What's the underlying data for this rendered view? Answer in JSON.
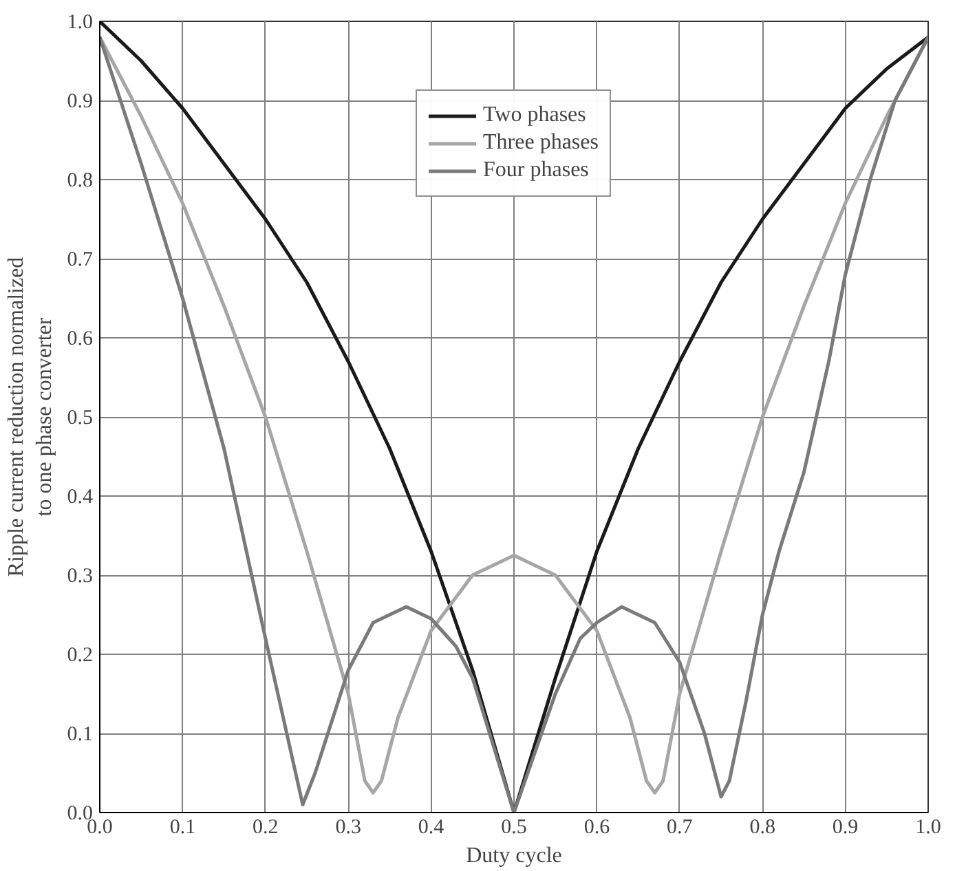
{
  "chart_data": {
    "type": "line",
    "xlabel": "Duty cycle",
    "ylabel": "Ripple current reduction normalized\nto one phase converter",
    "xlim": [
      0.0,
      1.0
    ],
    "ylim": [
      0.0,
      1.0
    ],
    "xticks": [
      {
        "value": 0,
        "label": "0.0"
      },
      0.1,
      0.2,
      0.3,
      0.4,
      0.5,
      0.6,
      0.7,
      0.8,
      0.9,
      {
        "value": 1,
        "label": "1.0"
      }
    ],
    "yticks": [
      {
        "value": 0,
        "label": "0.0"
      },
      0.1,
      0.2,
      0.3,
      0.4,
      0.5,
      0.6,
      0.7,
      0.8,
      0.9,
      {
        "value": 1,
        "label": "1.0"
      }
    ],
    "grid": true,
    "legend": "top",
    "marker": "none",
    "line_style": "solid",
    "series": [
      {
        "name": "Two phases",
        "color": "#1a1a1a",
        "x": [
          0,
          0.05,
          0.1,
          0.15,
          0.2,
          0.25,
          0.3,
          0.35,
          0.4,
          0.45,
          0.5,
          0.55,
          0.6,
          0.65,
          0.7,
          0.75,
          0.8,
          0.85,
          0.9,
          0.95,
          1.0
        ],
        "values": [
          1.0,
          0.95,
          0.89,
          0.82,
          0.75,
          0.67,
          0.57,
          0.46,
          0.33,
          0.18,
          0.0,
          0.17,
          0.33,
          0.46,
          0.57,
          0.67,
          0.75,
          0.82,
          0.89,
          0.94,
          0.98
        ]
      },
      {
        "name": "Three phases",
        "color": "#a6a6a6",
        "x": [
          0,
          0.05,
          0.1,
          0.15,
          0.2,
          0.25,
          0.3,
          0.32,
          0.33,
          0.34,
          0.36,
          0.4,
          0.45,
          0.5,
          0.55,
          0.6,
          0.64,
          0.66,
          0.67,
          0.68,
          0.7,
          0.75,
          0.8,
          0.85,
          0.9,
          0.95,
          1.0
        ],
        "values": [
          0.98,
          0.88,
          0.77,
          0.64,
          0.5,
          0.33,
          0.15,
          0.04,
          0.025,
          0.04,
          0.12,
          0.23,
          0.3,
          0.325,
          0.3,
          0.23,
          0.12,
          0.04,
          0.025,
          0.04,
          0.15,
          0.33,
          0.5,
          0.64,
          0.77,
          0.88,
          0.98
        ]
      },
      {
        "name": "Four phases",
        "color": "#7a7a7a",
        "x": [
          0,
          0.05,
          0.1,
          0.15,
          0.2,
          0.23,
          0.245,
          0.26,
          0.3,
          0.33,
          0.37,
          0.4,
          0.43,
          0.45,
          0.5,
          0.55,
          0.58,
          0.6,
          0.63,
          0.67,
          0.7,
          0.73,
          0.75,
          0.76,
          0.78,
          0.8,
          0.82,
          0.85,
          0.88,
          0.9,
          0.93,
          0.96,
          1.0
        ],
        "values": [
          0.98,
          0.82,
          0.65,
          0.46,
          0.22,
          0.08,
          0.01,
          0.05,
          0.18,
          0.24,
          0.26,
          0.245,
          0.21,
          0.17,
          0.0,
          0.15,
          0.22,
          0.24,
          0.26,
          0.24,
          0.19,
          0.1,
          0.02,
          0.04,
          0.14,
          0.25,
          0.33,
          0.43,
          0.57,
          0.68,
          0.8,
          0.9,
          0.98
        ]
      }
    ]
  }
}
